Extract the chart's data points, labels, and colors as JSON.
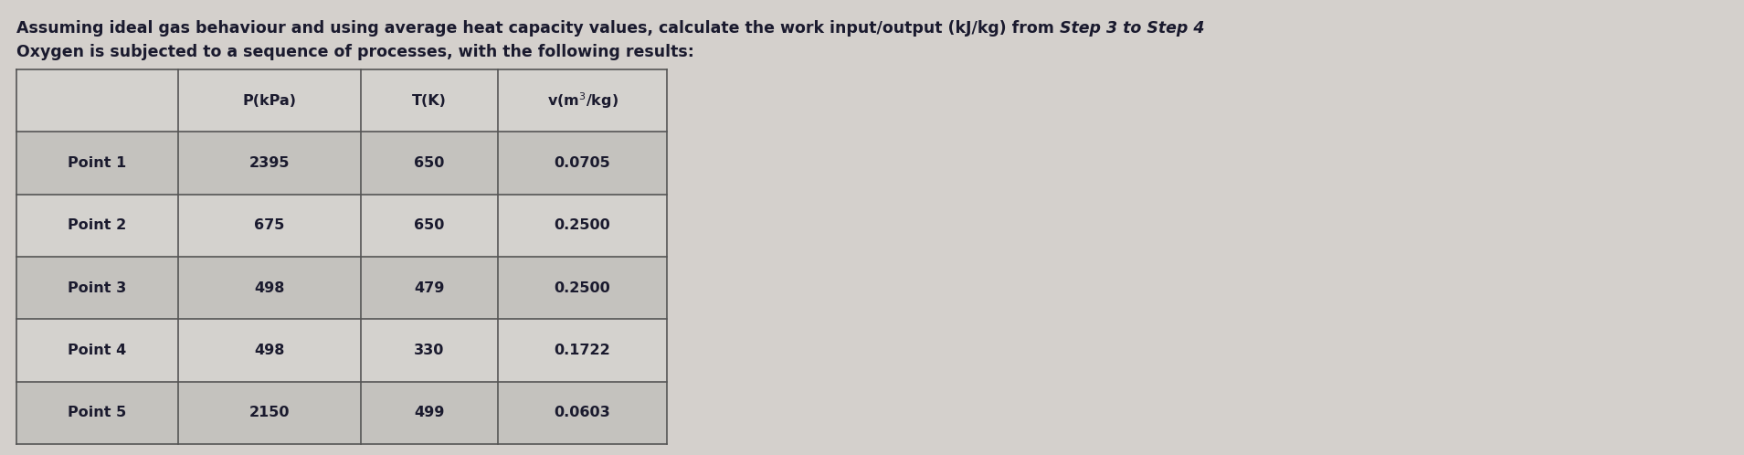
{
  "title_line1_normal": "Assuming ideal gas behaviour and using average heat capacity values, calculate the work input/output (kJ/kg) from ",
  "title_line1_italic": "Step 3 to Step 4",
  "title_line2": "Oxygen is subjected to a sequence of processes, with the following results:",
  "col_headers": [
    "P(kPa)",
    "T(K)",
    "v(m³/kg)"
  ],
  "row_labels": [
    "Point 1",
    "Point 2",
    "Point 3",
    "Point 4",
    "Point 5"
  ],
  "data": [
    [
      "2395",
      "650",
      "0.0705"
    ],
    [
      "675",
      "650",
      "0.2500"
    ],
    [
      "498",
      "479",
      "0.2500"
    ],
    [
      "498",
      "330",
      "0.1722"
    ],
    [
      "2150",
      "499",
      "0.0603"
    ]
  ],
  "bg_color": "#d4d0cc",
  "text_color": "#1a1a2e",
  "font_size_title": 12.5,
  "font_size_table": 11.5,
  "fig_width": 19.09,
  "fig_height": 4.98
}
